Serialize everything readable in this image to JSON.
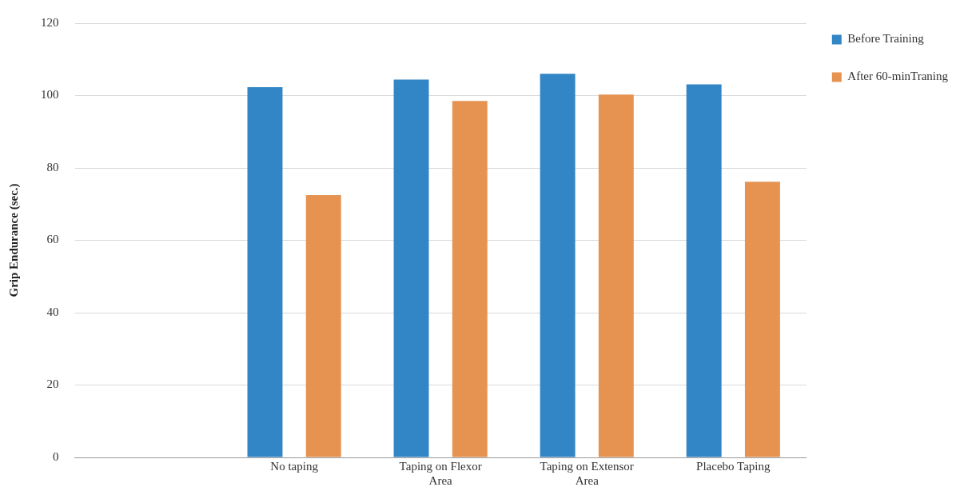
{
  "chart_data": {
    "type": "bar",
    "ylabel": "Grip Endurance (sec.)",
    "categories": [
      null,
      "No taping",
      "Taping on Flexor Area",
      "Taping on Extensor Area",
      "Placebo Taping"
    ],
    "series": [
      {
        "name": "Before Training",
        "color": "#3386c6",
        "values": [
          null,
          102.3,
          104.4,
          106,
          103.1
        ]
      },
      {
        "name": "After 60-minTraning",
        "color": "#e69352",
        "values": [
          null,
          72.5,
          98.5,
          100.3,
          76.2
        ]
      }
    ],
    "ylim": [
      0,
      120
    ],
    "yticks": [
      0,
      20,
      40,
      60,
      80,
      100,
      120
    ],
    "grid": "y",
    "legend": "top right"
  }
}
